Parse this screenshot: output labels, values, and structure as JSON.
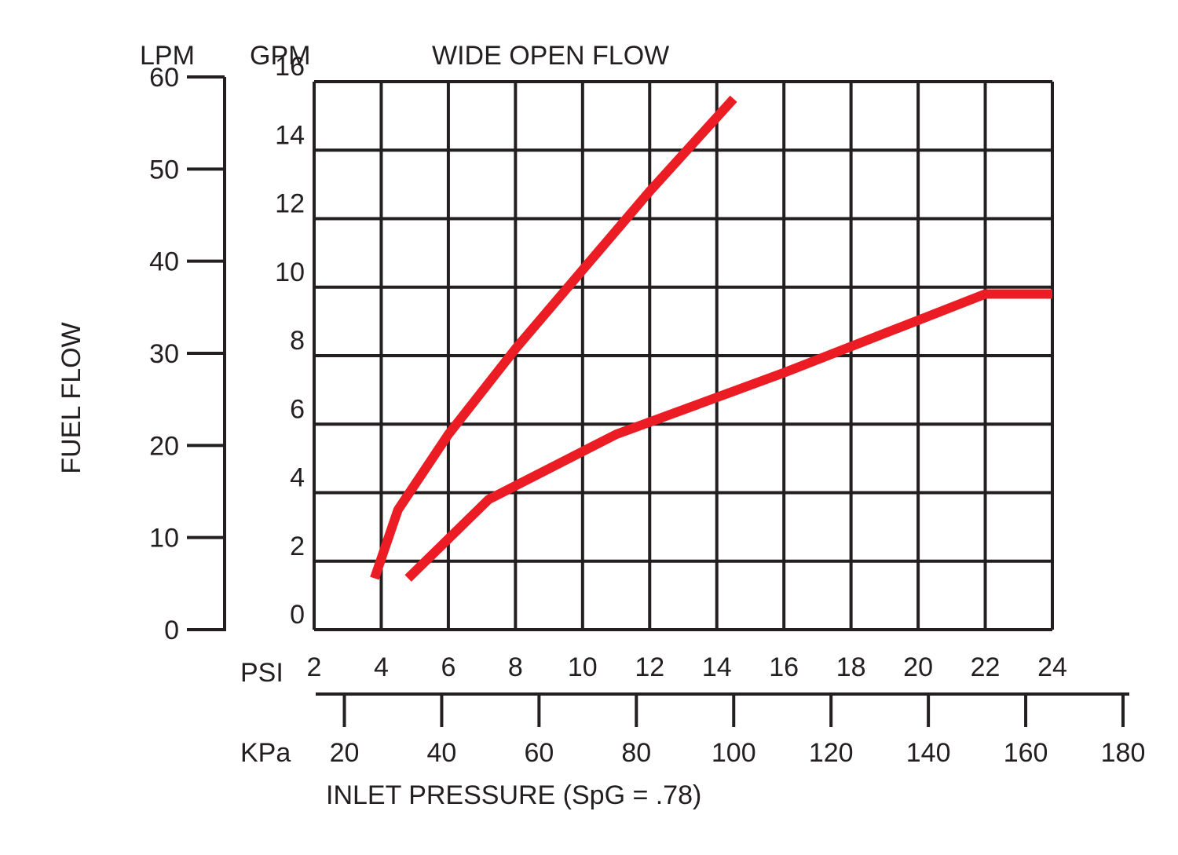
{
  "chart_data": {
    "type": "line",
    "title": "WIDE OPEN FLOW",
    "ylabel": "FUEL FLOW",
    "xlabel": "INLET PRESSURE (SpG = .78)",
    "y_primary": {
      "unit": "GPM",
      "ticks": [
        0,
        2,
        4,
        6,
        8,
        10,
        12,
        14,
        16
      ],
      "range": [
        0,
        16
      ]
    },
    "y_secondary": {
      "unit": "LPM",
      "ticks": [
        0,
        10,
        20,
        30,
        40,
        50,
        60
      ],
      "range": [
        0,
        60
      ]
    },
    "x_primary": {
      "unit": "PSI",
      "ticks": [
        2,
        4,
        6,
        8,
        10,
        12,
        14,
        16,
        18,
        20,
        22,
        24
      ],
      "range": [
        2,
        24
      ]
    },
    "x_secondary": {
      "unit": "KPa",
      "ticks": [
        20,
        40,
        60,
        80,
        100,
        120,
        140,
        160,
        180
      ]
    },
    "grid": true,
    "line_color": "#ec1c24",
    "series": [
      {
        "x": [
          3.8,
          4.5,
          6.0,
          8.0,
          10.0,
          12.0,
          14.5
        ],
        "y": [
          1.5,
          3.5,
          5.7,
          8.2,
          10.5,
          12.8,
          15.5
        ]
      },
      {
        "x": [
          4.8,
          7.2,
          11.0,
          16.0,
          22.0,
          24.0
        ],
        "y": [
          1.5,
          3.8,
          5.7,
          7.5,
          9.8,
          9.8
        ]
      }
    ]
  }
}
